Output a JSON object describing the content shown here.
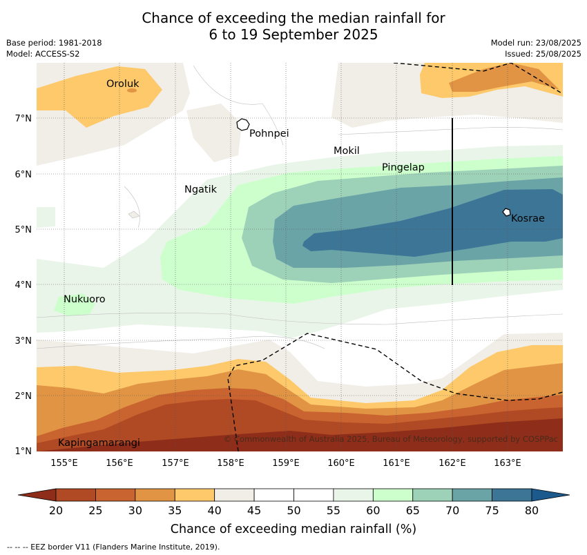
{
  "title": {
    "line1": "Chance of exceeding the median rainfall for",
    "line2": "6 to 19 September 2025"
  },
  "meta": {
    "base_period": "Base period: 1981-2018",
    "model": "Model: ACCESS-S2",
    "model_run": "Model run: 23/08/2025",
    "issued": "Issued: 25/08/2025"
  },
  "map": {
    "lon_labels": [
      "155°E",
      "156°E",
      "157°E",
      "158°E",
      "159°E",
      "160°E",
      "161°E",
      "162°E",
      "163°E"
    ],
    "lat_labels": [
      "7°N",
      "6°N",
      "5°N",
      "4°N",
      "3°N",
      "2°N",
      "1°N"
    ],
    "places": {
      "oroluk": "Oroluk",
      "pohnpei": "Pohnpei",
      "mokil": "Mokil",
      "pingelap": "Pingelap",
      "ngatik": "Ngatik",
      "kosrae": "Kosrae",
      "nukuoro": "Nukuoro",
      "kapingamarangi": "Kapingamarangi"
    },
    "copyright": "© Commonwealth of Australia 2025, Bureau of Meteorology, supported by COSPPac"
  },
  "colorbar": {
    "ticks": [
      "20",
      "25",
      "30",
      "35",
      "40",
      "45",
      "50",
      "55",
      "60",
      "65",
      "70",
      "75",
      "80"
    ],
    "colors": [
      "#b04a24",
      "#c9632f",
      "#e09444",
      "#fdc96a",
      "#f1ede7",
      "#ffffff",
      "#ffffff",
      "#eaf5ea",
      "#ccffcc",
      "#9dd1b8",
      "#6aa4a6",
      "#3d7597"
    ],
    "under_color": "#8e2e1a",
    "over_color": "#1c5a8e",
    "label": "Chance of exceeding median rainfall (%)"
  },
  "footer": "-- -- -- EEZ border V11 (Flanders Marine Institute, 2019)."
}
